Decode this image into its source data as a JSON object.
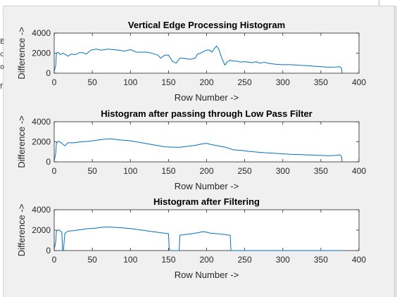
{
  "chart_data": [
    {
      "type": "line",
      "title": "Vertical Edge Processing Histogram",
      "xlabel": "Row Number ->",
      "ylabel": "Difference ->",
      "xlim": [
        0,
        400
      ],
      "ylim": [
        0,
        4000
      ],
      "xticks": [
        "0",
        "50",
        "100",
        "150",
        "200",
        "250",
        "300",
        "350",
        "400"
      ],
      "yticks": [
        "0",
        "2000",
        "4000"
      ],
      "line_color": "#0072bd",
      "series": [
        {
          "x": [
            0,
            2,
            3,
            5,
            8,
            12,
            18,
            22,
            28,
            33,
            38,
            42,
            48,
            55,
            62,
            70,
            78,
            85,
            92,
            100,
            108,
            115,
            122,
            130,
            136,
            140,
            145,
            150,
            155,
            160,
            165,
            170,
            175,
            180,
            185,
            188,
            192,
            197,
            200,
            204,
            207,
            210,
            213,
            216,
            220,
            224,
            227,
            230,
            235,
            240,
            245,
            250,
            255,
            260,
            265,
            270,
            276,
            280,
            290,
            300,
            310,
            320,
            330,
            340,
            350,
            360,
            370,
            375,
            377,
            378
          ],
          "y": [
            150,
            800,
            2000,
            2100,
            1850,
            2000,
            1700,
            1900,
            1850,
            2050,
            2050,
            1900,
            2300,
            2400,
            2300,
            2400,
            2350,
            2300,
            2200,
            2350,
            2100,
            2100,
            2100,
            1950,
            1800,
            1500,
            1800,
            1800,
            1200,
            1000,
            1500,
            1500,
            1400,
            1400,
            1500,
            1900,
            2000,
            2200,
            2300,
            2300,
            2100,
            2450,
            2700,
            2400,
            1500,
            800,
            1100,
            1300,
            1200,
            1200,
            1100,
            1150,
            1100,
            1050,
            1150,
            1000,
            1100,
            1000,
            900,
            850,
            850,
            800,
            750,
            700,
            650,
            600,
            620,
            650,
            500,
            0
          ]
        }
      ]
    },
    {
      "type": "line",
      "title": "Histogram after passing through Low Pass Filter",
      "xlabel": "Row Number ->",
      "ylabel": "Difference ->",
      "xlim": [
        0,
        400
      ],
      "ylim": [
        0,
        4000
      ],
      "xticks": [
        "0",
        "50",
        "100",
        "150",
        "200",
        "250",
        "300",
        "350",
        "400"
      ],
      "yticks": [
        "0",
        "2000",
        "4000"
      ],
      "line_color": "#0072bd",
      "series": [
        {
          "x": [
            0,
            2,
            3,
            6,
            10,
            14,
            18,
            25,
            35,
            45,
            55,
            65,
            75,
            85,
            100,
            115,
            130,
            145,
            158,
            165,
            175,
            185,
            195,
            200,
            205,
            215,
            225,
            235,
            245,
            255,
            270,
            290,
            310,
            330,
            350,
            360,
            370,
            375,
            377,
            378
          ],
          "y": [
            100,
            900,
            1900,
            2050,
            1850,
            1600,
            1900,
            1900,
            2000,
            2050,
            2150,
            2250,
            2300,
            2200,
            2100,
            1900,
            1700,
            1500,
            1450,
            1450,
            1550,
            1650,
            1800,
            1850,
            1750,
            1600,
            1450,
            1200,
            1150,
            1050,
            950,
            850,
            750,
            700,
            650,
            600,
            650,
            700,
            550,
            0
          ]
        }
      ]
    },
    {
      "type": "line",
      "title": "Histogram after Filtering",
      "xlabel": "Row Number ->",
      "ylabel": "Difference ->",
      "xlim": [
        0,
        400
      ],
      "ylim": [
        0,
        4000
      ],
      "xticks": [
        "0",
        "50",
        "100",
        "150",
        "200",
        "250",
        "300",
        "350",
        "400"
      ],
      "yticks": [
        "0",
        "2000",
        "4000"
      ],
      "line_color": "#0072bd",
      "series": [
        {
          "x": [
            0,
            2,
            3,
            6,
            8,
            10,
            11,
            12,
            14,
            18,
            25,
            35,
            45,
            55,
            65,
            72,
            85,
            100,
            115,
            130,
            140,
            150,
            151,
            152,
            160,
            164,
            165,
            175,
            185,
            195,
            200,
            205,
            215,
            225,
            231,
            232,
            233,
            250,
            300,
            350,
            377,
            378
          ],
          "y": [
            100,
            900,
            1900,
            2050,
            1900,
            1800,
            0,
            0,
            1700,
            1900,
            1950,
            2050,
            2150,
            2200,
            2300,
            2300,
            2250,
            2150,
            2000,
            1850,
            1750,
            1650,
            0,
            0,
            0,
            0,
            1500,
            1600,
            1700,
            1850,
            1800,
            1700,
            1650,
            1550,
            1500,
            0,
            0,
            0,
            0,
            0,
            0,
            0
          ]
        }
      ]
    }
  ]
}
